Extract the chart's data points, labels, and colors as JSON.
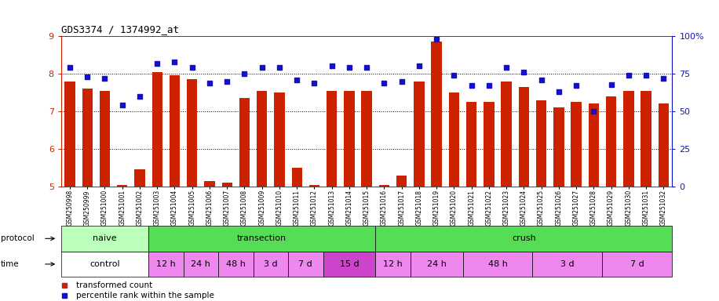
{
  "title": "GDS3374 / 1374992_at",
  "samples": [
    "GSM250998",
    "GSM250999",
    "GSM251000",
    "GSM251001",
    "GSM251002",
    "GSM251003",
    "GSM251004",
    "GSM251005",
    "GSM251006",
    "GSM251007",
    "GSM251008",
    "GSM251009",
    "GSM251010",
    "GSM251011",
    "GSM251012",
    "GSM251013",
    "GSM251014",
    "GSM251015",
    "GSM251016",
    "GSM251017",
    "GSM251018",
    "GSM251019",
    "GSM251020",
    "GSM251021",
    "GSM251022",
    "GSM251023",
    "GSM251024",
    "GSM251025",
    "GSM251026",
    "GSM251027",
    "GSM251028",
    "GSM251029",
    "GSM251030",
    "GSM251031",
    "GSM251032"
  ],
  "bar_values": [
    7.8,
    7.6,
    7.55,
    5.05,
    5.45,
    8.05,
    7.95,
    7.85,
    5.15,
    5.1,
    7.35,
    7.55,
    7.5,
    5.5,
    5.05,
    7.55,
    7.55,
    7.55,
    5.05,
    5.3,
    7.8,
    8.85,
    7.5,
    7.25,
    7.25,
    7.8,
    7.65,
    7.3,
    7.1,
    7.25,
    7.2,
    7.4,
    7.55,
    7.55,
    7.2
  ],
  "dot_values": [
    79,
    73,
    72,
    54,
    60,
    82,
    83,
    79,
    69,
    70,
    75,
    79,
    79,
    71,
    69,
    80,
    79,
    79,
    69,
    70,
    80,
    98,
    74,
    67,
    67,
    79,
    76,
    71,
    63,
    67,
    50,
    68,
    74,
    74,
    72
  ],
  "ylim_left": [
    5,
    9
  ],
  "ylim_right": [
    0,
    100
  ],
  "yticks_left": [
    5,
    6,
    7,
    8,
    9
  ],
  "yticks_right": [
    0,
    25,
    50,
    75,
    100
  ],
  "bar_color": "#cc2200",
  "dot_color": "#1111cc",
  "bg_color": "#ffffff",
  "naive_color": "#bbffbb",
  "trans_color": "#55dd55",
  "crush_color": "#55dd55",
  "white_color": "#ffffff",
  "pink_color": "#ee88ee",
  "dpink_color": "#cc44cc",
  "proto_groups": [
    {
      "label": "naive",
      "start": 0,
      "end": 4
    },
    {
      "label": "transection",
      "start": 5,
      "end": 17
    },
    {
      "label": "crush",
      "start": 18,
      "end": 34
    }
  ],
  "time_groups": [
    {
      "label": "control",
      "start": 0,
      "end": 4,
      "type": "white"
    },
    {
      "label": "12 h",
      "start": 5,
      "end": 6,
      "type": "pink"
    },
    {
      "label": "24 h",
      "start": 7,
      "end": 8,
      "type": "pink"
    },
    {
      "label": "48 h",
      "start": 9,
      "end": 10,
      "type": "pink"
    },
    {
      "label": "3 d",
      "start": 11,
      "end": 12,
      "type": "pink"
    },
    {
      "label": "7 d",
      "start": 13,
      "end": 14,
      "type": "pink"
    },
    {
      "label": "15 d",
      "start": 15,
      "end": 17,
      "type": "dpink"
    },
    {
      "label": "12 h",
      "start": 18,
      "end": 19,
      "type": "pink"
    },
    {
      "label": "24 h",
      "start": 20,
      "end": 22,
      "type": "pink"
    },
    {
      "label": "48 h",
      "start": 23,
      "end": 26,
      "type": "pink"
    },
    {
      "label": "3 d",
      "start": 27,
      "end": 30,
      "type": "pink"
    },
    {
      "label": "7 d",
      "start": 31,
      "end": 34,
      "type": "pink"
    }
  ],
  "legend_red": "transformed count",
  "legend_blue": "percentile rank within the sample"
}
